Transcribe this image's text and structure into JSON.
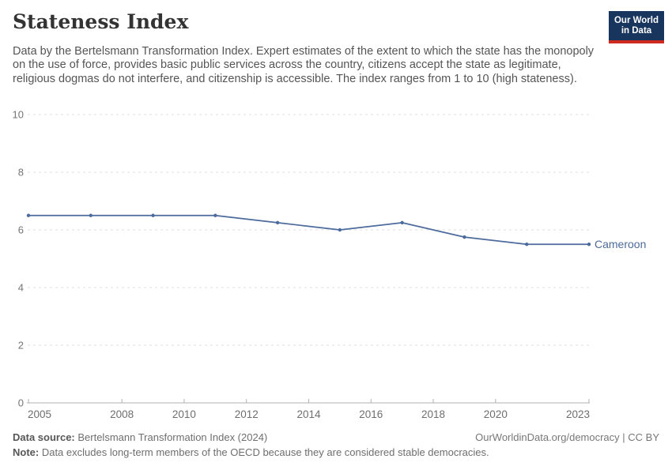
{
  "header": {
    "title": "Stateness Index",
    "subtitle": "Data by the Bertelsmann Transformation Index. Expert estimates of the extent to which the state has the monopoly on the use of force, provides basic public services across the country, citizens accept the state as legitimate, religious dogmas do not interfere, and citizenship is accessible. The index ranges from 1 to 10 (high stateness).",
    "logo": {
      "line1": "Our World",
      "line2": "in Data",
      "background_color": "#18355E",
      "bar_color": "#D12B1F"
    }
  },
  "chart_data": {
    "type": "line",
    "title": "Stateness Index",
    "xlabel": "",
    "ylabel": "",
    "xlim": [
      2005,
      2023
    ],
    "ylim": [
      0,
      10
    ],
    "x_ticks": [
      2005,
      2008,
      2010,
      2012,
      2014,
      2016,
      2018,
      2020,
      2023
    ],
    "y_ticks": [
      0,
      2,
      4,
      6,
      8,
      10
    ],
    "grid": true,
    "legend_position": "end-of-line",
    "series": [
      {
        "name": "Cameroon",
        "color": "#4C6A9C",
        "x": [
          2005,
          2007,
          2009,
          2011,
          2013,
          2015,
          2017,
          2019,
          2021,
          2023
        ],
        "values": [
          6.5,
          6.5,
          6.5,
          6.5,
          6.25,
          6.0,
          6.25,
          5.75,
          5.5,
          5.5
        ]
      }
    ]
  },
  "footer": {
    "data_source_label": "Data source:",
    "data_source_text": " Bertelsmann Transformation Index (2024)",
    "right_text": "OurWorldinData.org/democracy | CC BY",
    "note_label": "Note:",
    "note_text": " Data excludes long-term members of the OECD because they are considered stable democracies."
  }
}
